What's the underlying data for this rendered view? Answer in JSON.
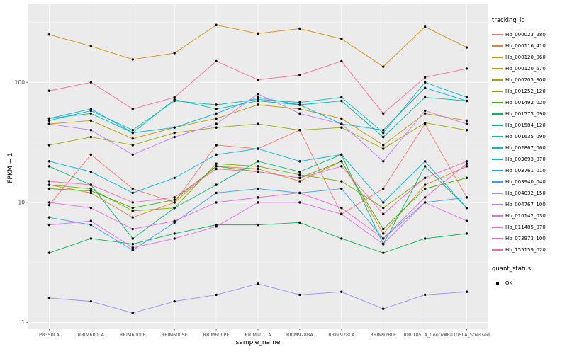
{
  "figure": {
    "background": "#FFFFFF",
    "panel_background": "#EBEBEB",
    "major_grid_color": "#FFFFFF",
    "minor_grid_color": "#F5F5F5",
    "tick_label_color": "#4D4D4D",
    "point_color": "#000000"
  },
  "axes": {
    "x_title": "sample_name",
    "y_title": "FPKM + 1"
  },
  "legend": {
    "tracking_title": "tracking_id",
    "quant_title": "quant_status",
    "quant_items": [
      {
        "label": "OK"
      }
    ]
  },
  "chart_data": {
    "type": "line",
    "title": "",
    "xlabel": "sample_name",
    "ylabel": "FPKM + 1",
    "yscale": "log10",
    "ylim": [
      0.9,
      450
    ],
    "yticks": [
      1,
      10,
      100
    ],
    "grid": true,
    "legend_position": "right",
    "x": [
      "PB350LA",
      "RRIM600LA",
      "RRIM600LE",
      "RRIM600SE",
      "RRIM600PE",
      "RRIM901LA",
      "RRIM928BA",
      "RRIM928LA",
      "RRIM928LE",
      "RRII105LA_Control",
      "RRII105LA_Stressed"
    ],
    "series": [
      {
        "name": "Hb_000023_280",
        "color": "#F8766D",
        "values": [
          9.5,
          25,
          13,
          10,
          30,
          28,
          40,
          8,
          13,
          45,
          11
        ]
      },
      {
        "name": "Hb_000116_410",
        "color": "#EA8331",
        "values": [
          14,
          12,
          7.5,
          10,
          20,
          19,
          15,
          22,
          5.5,
          14,
          20
        ]
      },
      {
        "name": "Hb_000120_060",
        "color": "#D89000",
        "values": [
          250,
          200,
          155,
          175,
          300,
          255,
          280,
          230,
          135,
          290,
          195
        ]
      },
      {
        "name": "Hb_000120_670",
        "color": "#C09B00",
        "values": [
          45,
          48,
          34,
          42,
          50,
          65,
          60,
          50,
          30,
          55,
          48
        ]
      },
      {
        "name": "Hb_000205_300",
        "color": "#A3A500",
        "values": [
          30,
          35,
          30,
          38,
          42,
          45,
          40,
          42,
          28,
          46,
          40
        ]
      },
      {
        "name": "Hb_001252_120",
        "color": "#7CAE00",
        "values": [
          14,
          13,
          8.5,
          9,
          21,
          20,
          17,
          15,
          9,
          16,
          16
        ]
      },
      {
        "name": "Hb_001492_020",
        "color": "#39B600",
        "values": [
          13,
          12.5,
          9,
          10.5,
          20,
          18,
          16,
          22,
          6,
          13,
          16
        ]
      },
      {
        "name": "Hb_001575_090",
        "color": "#00BB4E",
        "values": [
          3.8,
          5,
          4.5,
          5.5,
          6.5,
          6.5,
          6.8,
          5,
          3.8,
          5,
          5.5
        ]
      },
      {
        "name": "Hb_001584_120",
        "color": "#00BF7D",
        "values": [
          20,
          14,
          5,
          9,
          14,
          22,
          18,
          25,
          4.5,
          20,
          9
        ]
      },
      {
        "name": "Hb_001635_090",
        "color": "#00C1A3",
        "values": [
          50,
          55,
          38,
          72,
          60,
          70,
          65,
          70,
          35,
          75,
          70
        ]
      },
      {
        "name": "Hb_002867_060",
        "color": "#00BFC4",
        "values": [
          48,
          58,
          40,
          70,
          65,
          72,
          68,
          75,
          38,
          100,
          75
        ]
      },
      {
        "name": "Hb_003693_070",
        "color": "#00BBDC",
        "values": [
          22,
          18,
          12,
          16,
          25,
          28,
          22,
          25,
          10,
          22,
          9
        ]
      },
      {
        "name": "Hb_003761_010",
        "color": "#00B0F6",
        "values": [
          50,
          60,
          38,
          42,
          55,
          75,
          65,
          45,
          40,
          90,
          70
        ]
      },
      {
        "name": "Hb_003940_040",
        "color": "#35A2FF",
        "values": [
          7.5,
          6.5,
          4,
          6.8,
          12,
          13,
          12,
          13,
          5,
          10,
          11
        ]
      },
      {
        "name": "Hb_004032_150",
        "color": "#9590FF",
        "values": [
          1.6,
          1.5,
          1.2,
          1.5,
          1.7,
          2.1,
          1.7,
          1.8,
          1.3,
          1.7,
          1.8
        ]
      },
      {
        "name": "Hb_004767_100",
        "color": "#C77CFF",
        "values": [
          45,
          40,
          25,
          35,
          45,
          80,
          55,
          45,
          22,
          58,
          45
        ]
      },
      {
        "name": "Hb_010142_030",
        "color": "#E76BF3",
        "values": [
          6.5,
          7,
          4.2,
          5,
          6.3,
          10,
          10,
          8,
          4.5,
          10,
          7
        ]
      },
      {
        "name": "Hb_011485_070",
        "color": "#FA62DB",
        "values": [
          10,
          9,
          6,
          7,
          10,
          11,
          12,
          9,
          5,
          11,
          21
        ]
      },
      {
        "name": "Hb_073973_100",
        "color": "#FF62BC",
        "values": [
          15,
          14,
          10,
          11,
          19,
          18,
          16,
          20,
          8,
          16,
          22
        ]
      },
      {
        "name": "Hb_155159_020",
        "color": "#FF6A98",
        "values": [
          85,
          100,
          60,
          75,
          150,
          105,
          115,
          150,
          55,
          110,
          130
        ]
      }
    ]
  }
}
